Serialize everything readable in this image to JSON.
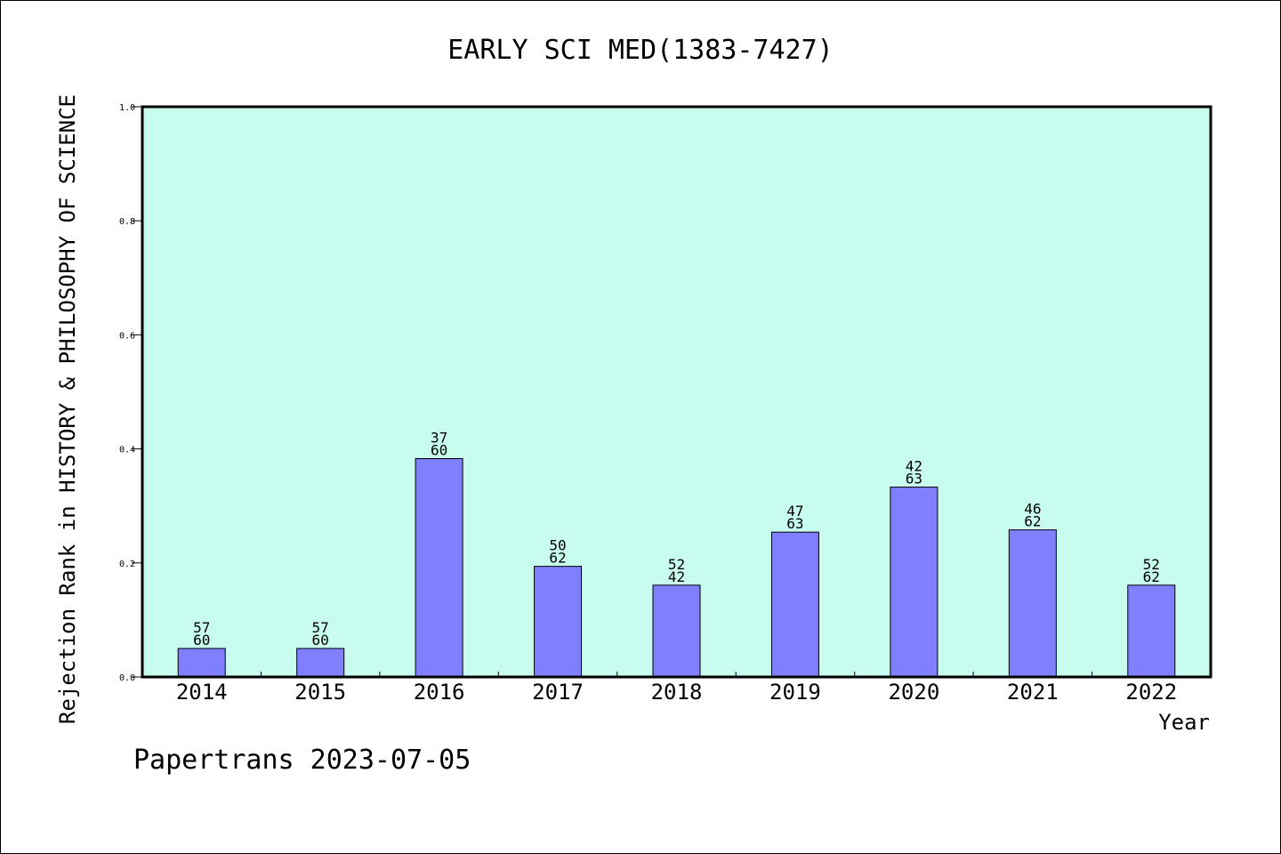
{
  "chart_data": {
    "type": "bar",
    "title": "EARLY SCI MED(1383-7427)",
    "xlabel": "Year",
    "ylabel": "Rejection Rank in HISTORY & PHILOSOPHY OF SCIENCE",
    "ylim": [
      0,
      1.0
    ],
    "yticks": [
      "0.0",
      "0.2",
      "0.4",
      "0.6",
      "0.8",
      "1.0"
    ],
    "grid": false,
    "categories": [
      "2014",
      "2015",
      "2016",
      "2017",
      "2018",
      "2019",
      "2020",
      "2021",
      "2022"
    ],
    "values": [
      0.05,
      0.05,
      0.383,
      0.194,
      0.161,
      0.254,
      0.333,
      0.258,
      0.161
    ],
    "labels_top": [
      "57",
      "57",
      "37",
      "50",
      "52",
      "47",
      "42",
      "46",
      "52"
    ],
    "labels_bottom": [
      "60",
      "60",
      "60",
      "62",
      "42",
      "63",
      "63",
      "62",
      "62"
    ],
    "colors": {
      "plot_background": "#c8fcee",
      "bar_fill": "#8080ff",
      "bar_edge": "#000000"
    }
  },
  "footer": "Papertrans 2023-07-05"
}
